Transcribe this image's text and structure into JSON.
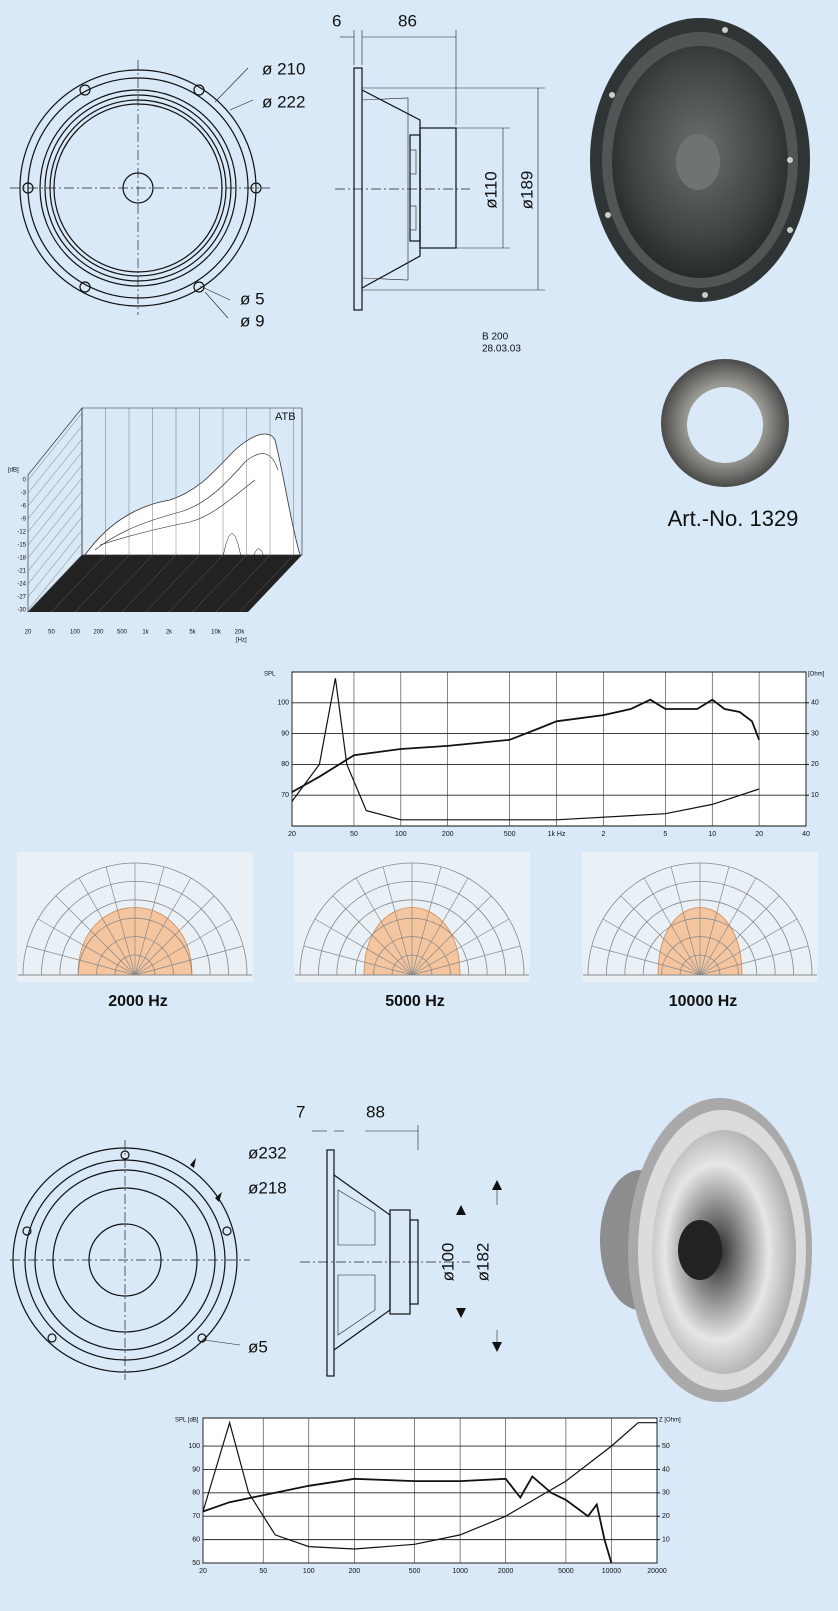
{
  "driver_1": {
    "front_view": {
      "dia_outer": "ø 210",
      "dia_frame": "ø 222",
      "hole": "ø 5",
      "hole_outer": "ø 9"
    },
    "side_view": {
      "flange": "6",
      "depth": "86",
      "magnet": "ø110",
      "baffle": "ø189"
    },
    "drawing_id": "B 200",
    "drawing_date": "28.03.03"
  },
  "accessory": {
    "label": "Art.-No. 1329"
  },
  "waterfall": {
    "title": "ATB",
    "y_unit": "[dB]",
    "y_labels": [
      "0",
      "-3",
      "-6",
      "-9",
      "-12",
      "-15",
      "-18",
      "-21",
      "-24",
      "-27",
      "-30"
    ],
    "x_labels": [
      "20",
      "50",
      "100",
      "200",
      "500",
      "1k",
      "2k",
      "5k",
      "10k",
      "20k"
    ],
    "x_unit": "[Hz]"
  },
  "chart_data": [
    {
      "type": "line",
      "log_x": true,
      "y_label": "SPL",
      "y2_label": "[Ohm]",
      "xlim": [
        20,
        40000
      ],
      "xticks": [
        20,
        50,
        100,
        200,
        500,
        {
          "value": 1000,
          "label": "1k Hz"
        },
        {
          "value": 2000,
          "label": "2"
        },
        {
          "value": 5000,
          "label": "5"
        },
        {
          "value": 10000,
          "label": "10"
        },
        {
          "value": 20000,
          "label": "20"
        },
        {
          "value": 40000,
          "label": "40"
        }
      ],
      "ylim": [
        60,
        110
      ],
      "yticks": [
        70,
        80,
        90,
        100
      ],
      "y2lim": [
        0,
        50
      ],
      "y2ticks": [
        10,
        20,
        30,
        40
      ],
      "grid": true,
      "series": [
        {
          "name": "SPL",
          "color": "#111111",
          "x": [
            20,
            30,
            50,
            100,
            200,
            500,
            800,
            1000,
            2000,
            3000,
            4000,
            5000,
            8000,
            10000,
            12000,
            15000,
            18000,
            20000
          ],
          "values": [
            71,
            76,
            83,
            85,
            86,
            88,
            92,
            94,
            96,
            98,
            101,
            98,
            98,
            101,
            98,
            97,
            94,
            88
          ]
        },
        {
          "name": "Impedance",
          "color": "#111111",
          "axis": "y2",
          "x": [
            20,
            30,
            38,
            45,
            60,
            100,
            500,
            1000,
            5000,
            10000,
            20000
          ],
          "values": [
            8,
            20,
            48,
            20,
            5,
            2,
            2,
            2,
            4,
            7,
            12
          ]
        }
      ]
    },
    {
      "type": "line",
      "log_x": true,
      "y_label": "SPL [dB]",
      "y2_label": "Z [Ohm]",
      "xlim": [
        20,
        20000
      ],
      "xticks": [
        20,
        50,
        100,
        200,
        500,
        1000,
        2000,
        5000,
        10000,
        20000
      ],
      "ylim": [
        50,
        112
      ],
      "yticks": [
        50,
        60,
        70,
        80,
        90,
        100
      ],
      "y2lim": [
        0,
        62
      ],
      "y2ticks": [
        10,
        20,
        30,
        40,
        50
      ],
      "grid": true,
      "series": [
        {
          "name": "SPL",
          "color": "#111111",
          "x": [
            20,
            30,
            50,
            100,
            200,
            500,
            1000,
            2000,
            2500,
            3000,
            4000,
            5000,
            7000,
            8000,
            9000,
            10000
          ],
          "values": [
            72,
            76,
            79,
            83,
            86,
            85,
            85,
            86,
            78,
            87,
            80,
            77,
            70,
            75,
            60,
            50
          ]
        },
        {
          "name": "Impedance",
          "color": "#111111",
          "axis": "y2",
          "x": [
            20,
            30,
            40,
            60,
            100,
            200,
            500,
            1000,
            2000,
            5000,
            10000,
            15000,
            20000
          ],
          "values": [
            22,
            60,
            30,
            12,
            7,
            6,
            8,
            12,
            20,
            35,
            50,
            60,
            60
          ]
        }
      ]
    }
  ],
  "polar_plots": [
    "2000 Hz",
    "5000 Hz",
    "10000 Hz"
  ],
  "driver_2": {
    "front_view": {
      "dia_frame": "ø232",
      "dia_outer": "ø218",
      "hole": "ø5"
    },
    "side_view": {
      "flange": "7",
      "depth": "88",
      "magnet": "ø100",
      "baffle": "ø182"
    }
  }
}
